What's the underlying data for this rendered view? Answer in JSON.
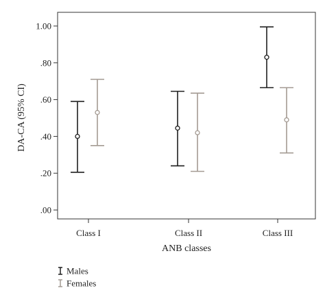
{
  "chart_data": {
    "type": "errorbar",
    "xlabel": "ANB classes",
    "ylabel": "DA-CA (95% CI)",
    "categories": [
      "Class I",
      "Class II",
      "Class III"
    ],
    "ylim": [
      0.0,
      1.0
    ],
    "yticks": [
      ".00",
      ".20",
      ".40",
      ".60",
      ".80",
      "1.00"
    ],
    "ytick_values": [
      0.0,
      0.2,
      0.4,
      0.6,
      0.8,
      1.0
    ],
    "grid": false,
    "legend_position": "bottom-left",
    "series": [
      {
        "name": "Males",
        "color": "#1e1e1e",
        "mean": [
          0.4,
          0.445,
          0.83
        ],
        "lower": [
          0.205,
          0.24,
          0.665
        ],
        "upper": [
          0.59,
          0.645,
          0.995
        ]
      },
      {
        "name": "Females",
        "color": "#a39a92",
        "mean": [
          0.53,
          0.42,
          0.49
        ],
        "lower": [
          0.35,
          0.21,
          0.31
        ],
        "upper": [
          0.71,
          0.635,
          0.665
        ]
      }
    ]
  }
}
